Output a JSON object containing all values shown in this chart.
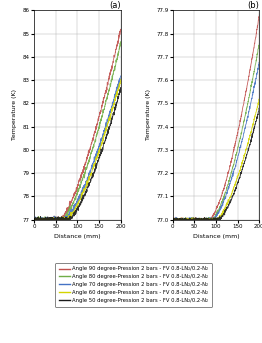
{
  "panel_a": {
    "title": "(a)",
    "xlabel": "Distance (mm)",
    "ylabel": "Temperature (K)",
    "xlim": [
      0,
      200
    ],
    "ylim": [
      77,
      86
    ],
    "yticks": [
      77,
      78,
      79,
      80,
      81,
      82,
      83,
      84,
      85,
      86
    ],
    "xticks": [
      0,
      50,
      100,
      150,
      200
    ]
  },
  "panel_b": {
    "title": "(b)",
    "xlabel": "Distance (mm)",
    "ylabel": "Temperature (K)",
    "xlim": [
      0,
      200
    ],
    "ylim": [
      77,
      77.9
    ],
    "yticks": [
      77,
      77.1,
      77.2,
      77.3,
      77.4,
      77.5,
      77.6,
      77.7,
      77.8,
      77.9
    ],
    "xticks": [
      0,
      50,
      100,
      150,
      200
    ]
  },
  "colors": {
    "90": "#c0504d",
    "80": "#70ad47",
    "70": "#4472c4",
    "60": "#d4d400",
    "50": "#1a1a1a"
  },
  "legend_entries": [
    "Angle 90 degree-Pression 2 bars - FV 0.8-LN₂/0.2-N₂",
    "Angle 80 degree-Pression 2 bars - FV 0.8-LN₂/0.2-N₂",
    "Angle 70 degree-Pression 2 bars - FV 0.8-LN₂/0.2-N₂",
    "Angle 60 degree-Pression 2 bars - FV 0.8-LN₂/0.2-N₂",
    "Angle 50 degree-Pression 2 bars - FV 0.8-LN₂/0.2-N₂"
  ],
  "curve_a": {
    "end_vals": {
      "90": 85.2,
      "80": 84.6,
      "70": 83.2,
      "60": 83.0,
      "50": 82.6
    },
    "start_x": {
      "90": 60,
      "80": 65,
      "70": 70,
      "60": 75,
      "50": 80
    },
    "noise_scale": 0.05
  },
  "curve_b": {
    "end_vals": {
      "90": 77.88,
      "80": 77.76,
      "70": 77.68,
      "60": 77.52,
      "50": 77.48
    },
    "start_x": {
      "90": 85,
      "80": 90,
      "70": 92,
      "60": 100,
      "50": 105
    },
    "noise_scale": 0.003
  }
}
